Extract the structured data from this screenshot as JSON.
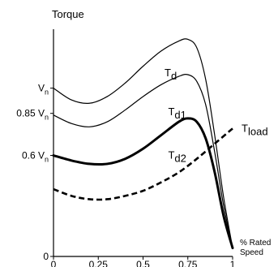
{
  "chart_data": {
    "type": "line",
    "title": "",
    "ylabel": "Torque",
    "xlabel": "% Rated Speed",
    "xlabel_lines": [
      "% Rated",
      "Speed"
    ],
    "xlim": [
      0,
      1
    ],
    "ylim": [
      0,
      1.35
    ],
    "grid": false,
    "xticks": [
      {
        "value": 0,
        "label": "0"
      },
      {
        "value": 0.25,
        "label": "0.25"
      },
      {
        "value": 0.5,
        "label": "0.5"
      },
      {
        "value": 0.75,
        "label": "0.75"
      },
      {
        "value": 1,
        "label": "1"
      }
    ],
    "yticks": [
      {
        "value": 0,
        "label": "0",
        "base": "0",
        "sub": ""
      },
      {
        "value": 0.6,
        "label": "0.6 Vn",
        "base": "0.6 V",
        "sub": "n"
      },
      {
        "value": 0.85,
        "label": "0.85 Vn",
        "base": "0.85 V",
        "sub": "n"
      },
      {
        "value": 1.0,
        "label": "Vn",
        "base": "V",
        "sub": "n"
      }
    ],
    "series": [
      {
        "name": "Td",
        "label_base": "T",
        "label_sub": "d",
        "label_at": [
          0.62,
          1.07
        ],
        "style": "thin",
        "x": [
          0,
          0.1,
          0.2,
          0.3,
          0.4,
          0.5,
          0.6,
          0.7,
          0.75,
          0.8,
          0.85,
          0.9,
          0.95,
          1.0
        ],
        "y": [
          1.0,
          0.93,
          0.91,
          0.95,
          1.03,
          1.13,
          1.22,
          1.28,
          1.29,
          1.24,
          1.05,
          0.72,
          0.35,
          0.05
        ]
      },
      {
        "name": "Td1",
        "label_base": "T",
        "label_sub": "d1",
        "label_at": [
          0.64,
          0.84
        ],
        "style": "thin",
        "x": [
          0,
          0.1,
          0.2,
          0.3,
          0.4,
          0.5,
          0.6,
          0.7,
          0.75,
          0.8,
          0.85,
          0.9,
          0.95,
          1.0
        ],
        "y": [
          0.84,
          0.79,
          0.77,
          0.8,
          0.87,
          0.95,
          1.02,
          1.07,
          1.08,
          1.04,
          0.9,
          0.62,
          0.3,
          0.05
        ]
      },
      {
        "name": "Td2",
        "label_base": "T",
        "label_sub": "d2",
        "label_at": [
          0.64,
          0.58
        ],
        "style": "thick",
        "x": [
          0,
          0.1,
          0.2,
          0.3,
          0.4,
          0.5,
          0.6,
          0.7,
          0.75,
          0.8,
          0.85,
          0.9,
          0.95,
          1.0
        ],
        "y": [
          0.6,
          0.57,
          0.55,
          0.55,
          0.58,
          0.64,
          0.72,
          0.8,
          0.82,
          0.8,
          0.7,
          0.5,
          0.24,
          0.05
        ]
      },
      {
        "name": "Tload",
        "label_base": "T",
        "label_sub": "load",
        "label_at": [
          1.05,
          0.74
        ],
        "style": "dashed",
        "x": [
          0,
          0.1,
          0.2,
          0.3,
          0.4,
          0.5,
          0.6,
          0.7,
          0.8,
          0.9,
          1.0
        ],
        "y": [
          0.4,
          0.36,
          0.34,
          0.34,
          0.36,
          0.39,
          0.44,
          0.5,
          0.58,
          0.67,
          0.76
        ]
      }
    ],
    "colors": {
      "line": "#000000",
      "background": "#ffffff"
    }
  }
}
